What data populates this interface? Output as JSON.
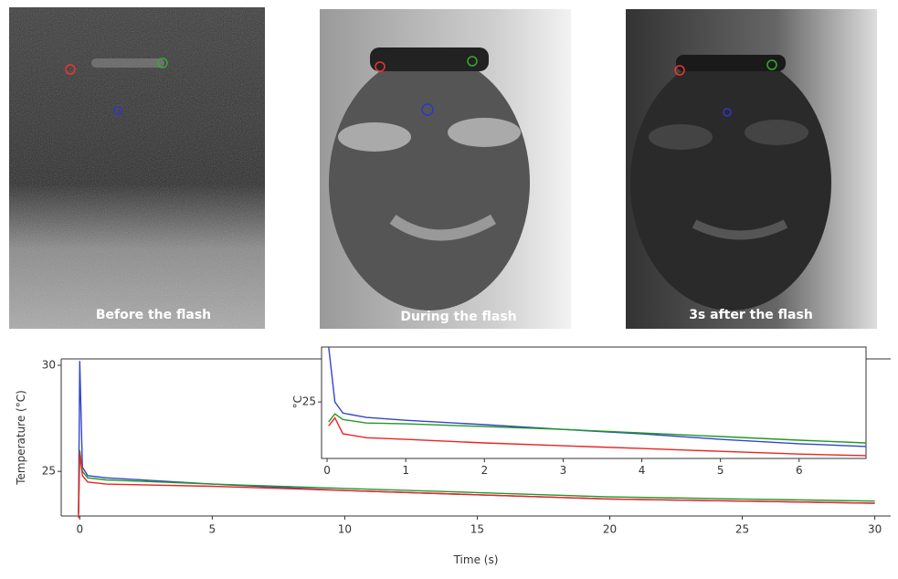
{
  "panels": [
    {
      "caption": "Before the flash"
    },
    {
      "caption": "During the flash"
    },
    {
      "caption": "3s after the flash"
    }
  ],
  "chart_data": [
    {
      "type": "line",
      "xlabel": "Time (s)",
      "ylabel": "Temperature (°C)",
      "x": [
        -0.05,
        0,
        0.1,
        0.3,
        1,
        5,
        10,
        15,
        20,
        25,
        30
      ],
      "series": [
        {
          "color": "#3344cc",
          "values": [
            23.0,
            30.2,
            25.2,
            24.8,
            24.7,
            24.4,
            24.1,
            23.9,
            23.7,
            23.6,
            23.5
          ]
        },
        {
          "color": "#229922",
          "values": [
            23.0,
            26.0,
            25.0,
            24.7,
            24.6,
            24.4,
            24.2,
            24.0,
            23.8,
            23.7,
            23.6
          ]
        },
        {
          "color": "#ee2222",
          "values": [
            22.8,
            25.9,
            24.8,
            24.5,
            24.4,
            24.3,
            24.1,
            23.9,
            23.7,
            23.6,
            23.5
          ]
        }
      ],
      "xlim": [
        -0.7,
        30.6
      ],
      "ylim": [
        22.9,
        30.3
      ],
      "xticks": [
        0,
        5,
        10,
        15,
        20,
        25,
        30
      ],
      "yticks": [
        25,
        30
      ]
    },
    {
      "type": "line",
      "ylabel": "°C",
      "x": [
        0.02,
        0.1,
        0.2,
        0.5,
        1,
        2,
        3,
        4,
        5,
        6,
        6.85
      ],
      "series": [
        {
          "color": "#3344cc",
          "values": [
            26.38,
            25.0,
            24.72,
            24.61,
            24.54,
            24.43,
            24.31,
            24.2,
            24.06,
            23.95,
            23.88
          ]
        },
        {
          "color": "#229922",
          "values": [
            24.5,
            24.7,
            24.56,
            24.47,
            24.45,
            24.38,
            24.31,
            24.22,
            24.13,
            24.04,
            23.97
          ]
        },
        {
          "color": "#ee2222",
          "values": [
            24.4,
            24.6,
            24.2,
            24.1,
            24.06,
            23.97,
            23.9,
            23.83,
            23.76,
            23.69,
            23.65
          ]
        }
      ],
      "xlim": [
        -0.07,
        6.85
      ],
      "ylim": [
        23.58,
        26.38
      ],
      "xticks": [
        0,
        1,
        2,
        3,
        4,
        5,
        6
      ],
      "yticks": [
        25
      ]
    }
  ]
}
